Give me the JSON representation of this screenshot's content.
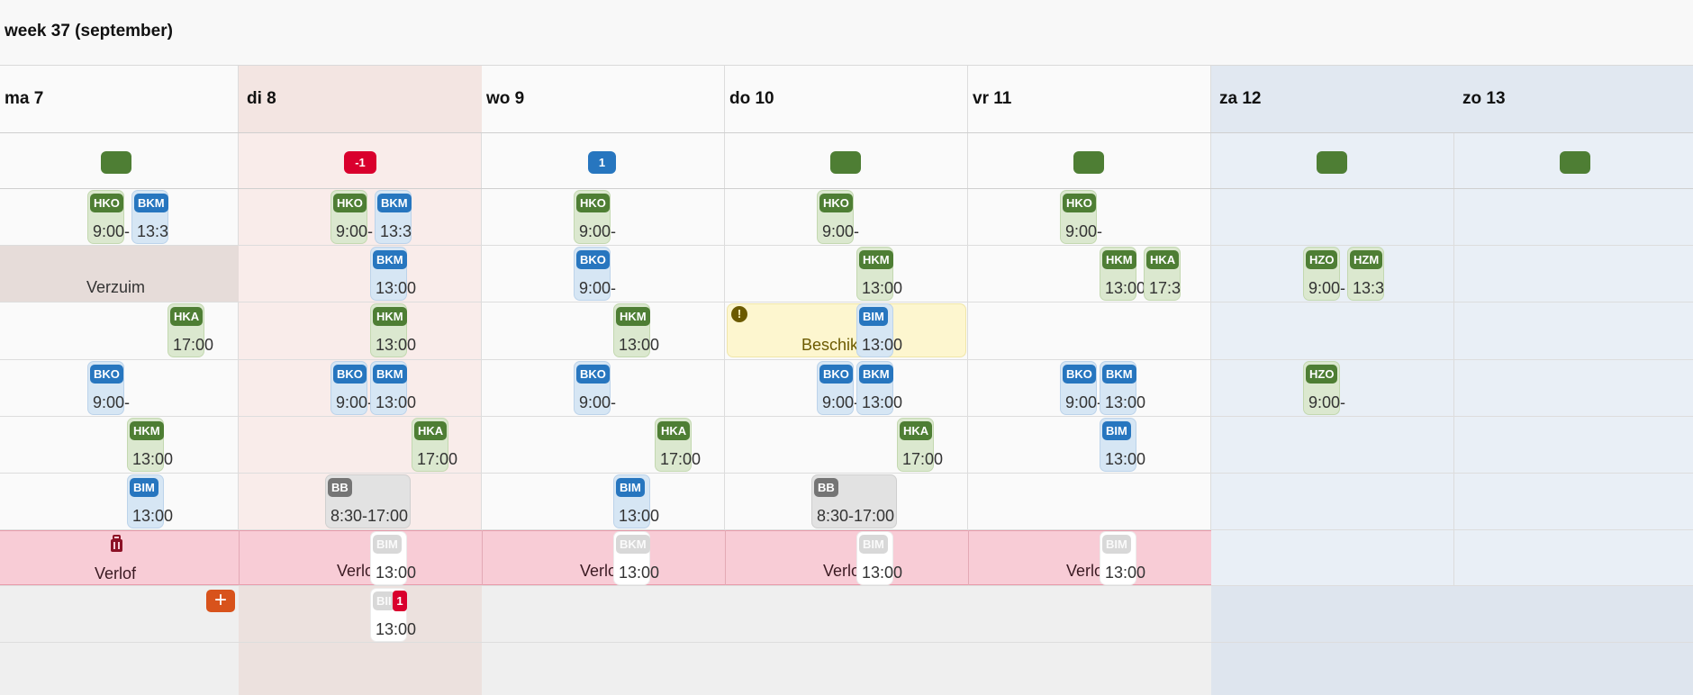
{
  "week_title": "week 37 (september)",
  "days": [
    "ma 7",
    "di 8",
    "wo 9",
    "do 10",
    "vr 11",
    "za 12",
    "zo 13"
  ],
  "day_counts": [
    "",
    "-1",
    "1",
    "",
    "",
    "",
    ""
  ],
  "colors": {
    "green": "#4e7e34",
    "blue": "#2776bf",
    "red": "#d9002d",
    "leave_row": "#f8ccd6"
  },
  "rows": {
    "verzuim": "Verzuim",
    "beschikbaar_prefix": "Beschik",
    "verlof": "Verlof",
    "verlof_truncated": "Verlo"
  },
  "cards": [
    {
      "tag": "HKO",
      "time": "9:00-",
      "color": "green"
    },
    {
      "tag": "BKM",
      "time": "13:3",
      "color": "blue"
    },
    {
      "tag": "HKO",
      "time": "9:00-",
      "color": "green"
    },
    {
      "tag": "BKM",
      "time": "13:3",
      "color": "blue"
    },
    {
      "tag": "HKO",
      "time": "9:00-",
      "color": "green"
    },
    {
      "tag": "HKO",
      "time": "9:00-",
      "color": "green"
    },
    {
      "tag": "HKO",
      "time": "9:00-",
      "color": "green"
    },
    {
      "tag": "BKM",
      "time": "13:00",
      "color": "blue"
    },
    {
      "tag": "BKO",
      "time": "9:00-",
      "color": "blue"
    },
    {
      "tag": "HKM",
      "time": "13:00",
      "color": "green"
    },
    {
      "tag": "HKM",
      "time": "13:00",
      "color": "green"
    },
    {
      "tag": "HKA",
      "time": "17:3",
      "color": "green"
    },
    {
      "tag": "HZO",
      "time": "9:00-",
      "color": "green"
    },
    {
      "tag": "HZM",
      "time": "13:3",
      "color": "green"
    },
    {
      "tag": "HKA",
      "time": "17:00",
      "color": "green"
    },
    {
      "tag": "HKM",
      "time": "13:00",
      "color": "green"
    },
    {
      "tag": "HKM",
      "time": "13:00",
      "color": "green"
    },
    {
      "tag": "BIM",
      "time": "13:00",
      "color": "blue"
    },
    {
      "tag": "BKO",
      "time": "9:00-",
      "color": "blue"
    },
    {
      "tag": "BKO",
      "time": "9:00-",
      "color": "blue"
    },
    {
      "tag": "BKM",
      "time": "13:00",
      "color": "blue"
    },
    {
      "tag": "BKO",
      "time": "9:00-",
      "color": "blue"
    },
    {
      "tag": "BKO",
      "time": "9:00-",
      "color": "blue"
    },
    {
      "tag": "BKM",
      "time": "13:00",
      "color": "blue"
    },
    {
      "tag": "BKO",
      "time": "9:00-",
      "color": "blue"
    },
    {
      "tag": "BKM",
      "time": "13:00",
      "color": "blue"
    },
    {
      "tag": "HZO",
      "time": "9:00-",
      "color": "green"
    },
    {
      "tag": "HKM",
      "time": "13:00",
      "color": "green"
    },
    {
      "tag": "HKA",
      "time": "17:00",
      "color": "green"
    },
    {
      "tag": "HKA",
      "time": "17:00",
      "color": "green"
    },
    {
      "tag": "HKA",
      "time": "17:00",
      "color": "green"
    },
    {
      "tag": "BIM",
      "time": "13:00",
      "color": "blue"
    },
    {
      "tag": "BIM",
      "time": "13:00",
      "color": "blue"
    },
    {
      "tag": "BB",
      "time": "8:30-17:00",
      "color": "gray"
    },
    {
      "tag": "BIM",
      "time": "13:00",
      "color": "blue"
    },
    {
      "tag": "BB",
      "time": "8:30-17:00",
      "color": "gray"
    },
    {
      "tag": "BIM",
      "time": "13:00",
      "color": "ghost"
    },
    {
      "tag": "BKM",
      "time": "13:00",
      "color": "ghost"
    },
    {
      "tag": "BIM",
      "time": "13:00",
      "color": "ghost"
    },
    {
      "tag": "BIM",
      "time": "13:00",
      "color": "ghost"
    },
    {
      "tag": "BII",
      "time": "13:00",
      "color": "ghost"
    }
  ],
  "open_count": "1",
  "icons": {
    "luggage": "luggage-icon",
    "warning": "warning-icon",
    "add": "plus-icon"
  }
}
